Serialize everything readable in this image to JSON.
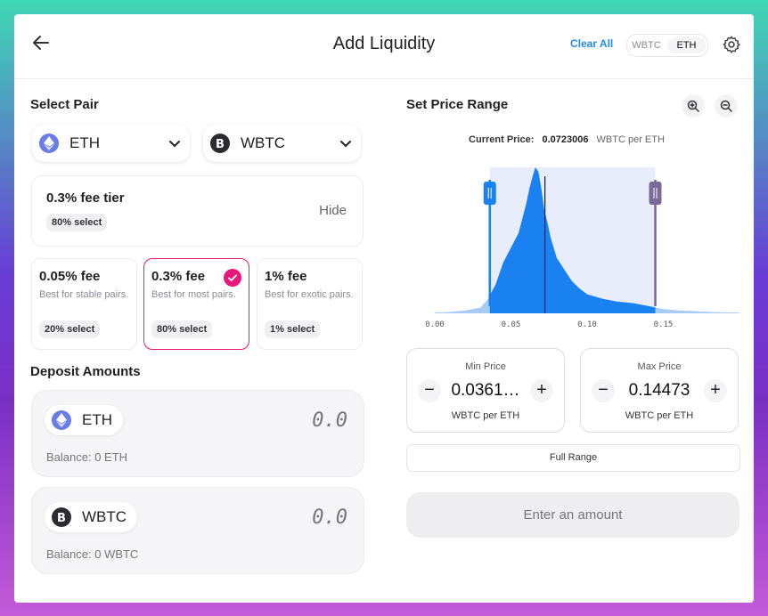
{
  "header": {
    "title": "Add Liquidity",
    "clear_all": "Clear All",
    "token_toggle": [
      "WBTC",
      "ETH"
    ]
  },
  "select_pair": {
    "label": "Select Pair",
    "token_a": {
      "symbol": "ETH",
      "icon": "eth-icon"
    },
    "token_b": {
      "symbol": "WBTC",
      "icon": "btc-icon"
    }
  },
  "fee_tier": {
    "title": "0.3% fee tier",
    "select_pct": "80% select",
    "hide_label": "Hide",
    "options": [
      {
        "label": "0.05% fee",
        "desc": "Best for stable pairs.",
        "select": "20% select",
        "selected": false
      },
      {
        "label": "0.3% fee",
        "desc": "Best for most pairs.",
        "select": "80% select",
        "selected": true
      },
      {
        "label": "1% fee",
        "desc": "Best for exotic pairs.",
        "select": "1% select",
        "selected": false
      }
    ]
  },
  "deposit": {
    "label": "Deposit Amounts",
    "items": [
      {
        "symbol": "ETH",
        "amount_placeholder": "0.0",
        "balance": "Balance: 0 ETH"
      },
      {
        "symbol": "WBTC",
        "amount_placeholder": "0.0",
        "balance": "Balance: 0 WBTC"
      }
    ]
  },
  "price_range": {
    "label": "Set Price Range",
    "current_price_label": "Current Price:",
    "current_price_value": "0.0723006",
    "current_price_unit": "WBTC per ETH",
    "min": {
      "label": "Min Price",
      "value": "0.0361…",
      "unit": "WBTC per ETH"
    },
    "max": {
      "label": "Max Price",
      "value": "0.14473",
      "unit": "WBTC per ETH"
    },
    "full_range": "Full Range",
    "submit": "Enter an amount"
  },
  "chart_data": {
    "type": "area",
    "x_tick_labels": [
      "0.00",
      "0.05",
      "0.10",
      "0.15"
    ],
    "xlim": [
      0.0,
      0.2
    ],
    "current_price": 0.0723006,
    "min_price": 0.0361,
    "max_price": 0.14473,
    "colors": {
      "fill": "#1a82f0",
      "range_bg": "#e9edfb",
      "min_handle": "#1a82f0",
      "max_handle": "#7a6a9a",
      "current_line": "#1a1a1a",
      "outside_fill": "#a8ccf4"
    },
    "x": [
      0.0,
      0.01,
      0.02,
      0.03,
      0.035,
      0.04,
      0.045,
      0.05,
      0.055,
      0.06,
      0.062,
      0.064,
      0.066,
      0.068,
      0.07,
      0.072,
      0.074,
      0.076,
      0.078,
      0.08,
      0.085,
      0.09,
      0.095,
      0.1,
      0.11,
      0.12,
      0.13,
      0.14,
      0.15,
      0.16,
      0.17,
      0.18,
      0.19,
      0.2
    ],
    "y": [
      0.005,
      0.01,
      0.02,
      0.04,
      0.1,
      0.2,
      0.35,
      0.45,
      0.55,
      0.75,
      0.85,
      0.93,
      1.0,
      0.97,
      0.85,
      0.7,
      0.62,
      0.52,
      0.45,
      0.38,
      0.3,
      0.22,
      0.17,
      0.13,
      0.1,
      0.08,
      0.07,
      0.05,
      0.03,
      0.02,
      0.015,
      0.01,
      0.007,
      0.005
    ]
  }
}
